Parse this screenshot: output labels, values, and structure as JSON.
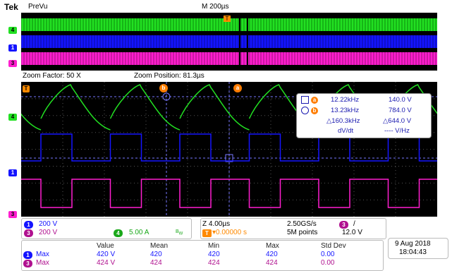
{
  "header": {
    "brand": "Tek",
    "mode": "PreVu",
    "timebase": "M 200µs"
  },
  "zoom": {
    "factor_label": "Zoom Factor: 50 X",
    "position_label": "Zoom Position: 81.3µs"
  },
  "channel_markers": {
    "ch4": "4",
    "ch1": "1",
    "ch3": "3",
    "trigger": "T"
  },
  "cursors": {
    "a": "a",
    "b": "b"
  },
  "readout": {
    "row_a": {
      "freq": "12.22kHz",
      "volt": "140.0 V"
    },
    "row_b": {
      "freq": "13.23kHz",
      "volt": "784.0 V"
    },
    "row_delta": {
      "freq": "△160.3kHz",
      "volt": "△644.0 V"
    },
    "row_rate": {
      "label": "dV/dt",
      "value": "---- V/Hz"
    }
  },
  "channels": {
    "ch1": {
      "num": "1",
      "scale": "200 V"
    },
    "ch3": {
      "num": "3",
      "scale": "200 V"
    },
    "ch4": {
      "num": "4",
      "scale": "5.00 A"
    },
    "bw_icon": "bandwidth-limit-icon"
  },
  "acquisition": {
    "horizontal": "Z 4.00µs",
    "sample_rate": "2.50GS/s",
    "trigger_source": "3",
    "trigger_slope": "/",
    "trigger_position": "▾0.00000 s",
    "record_length": "5M points",
    "trigger_level": "12.0 V"
  },
  "measurements": {
    "headers": [
      "Value",
      "Mean",
      "Min",
      "Max",
      "Std Dev"
    ],
    "rows": [
      {
        "ch": "1",
        "name": "Max",
        "values": [
          "420 V",
          "420",
          "420",
          "420",
          "0.00"
        ]
      },
      {
        "ch": "3",
        "name": "Max",
        "values": [
          "424 V",
          "424",
          "424",
          "424",
          "0.00"
        ]
      }
    ]
  },
  "datetime": {
    "date": "9 Aug 2018",
    "time": "18:04:43"
  },
  "colors": {
    "ch1": "#1414ff",
    "ch3": "#ff1ecf",
    "ch4": "#22e022",
    "marker": "#ff8a00",
    "cursor": "#7777ff"
  }
}
